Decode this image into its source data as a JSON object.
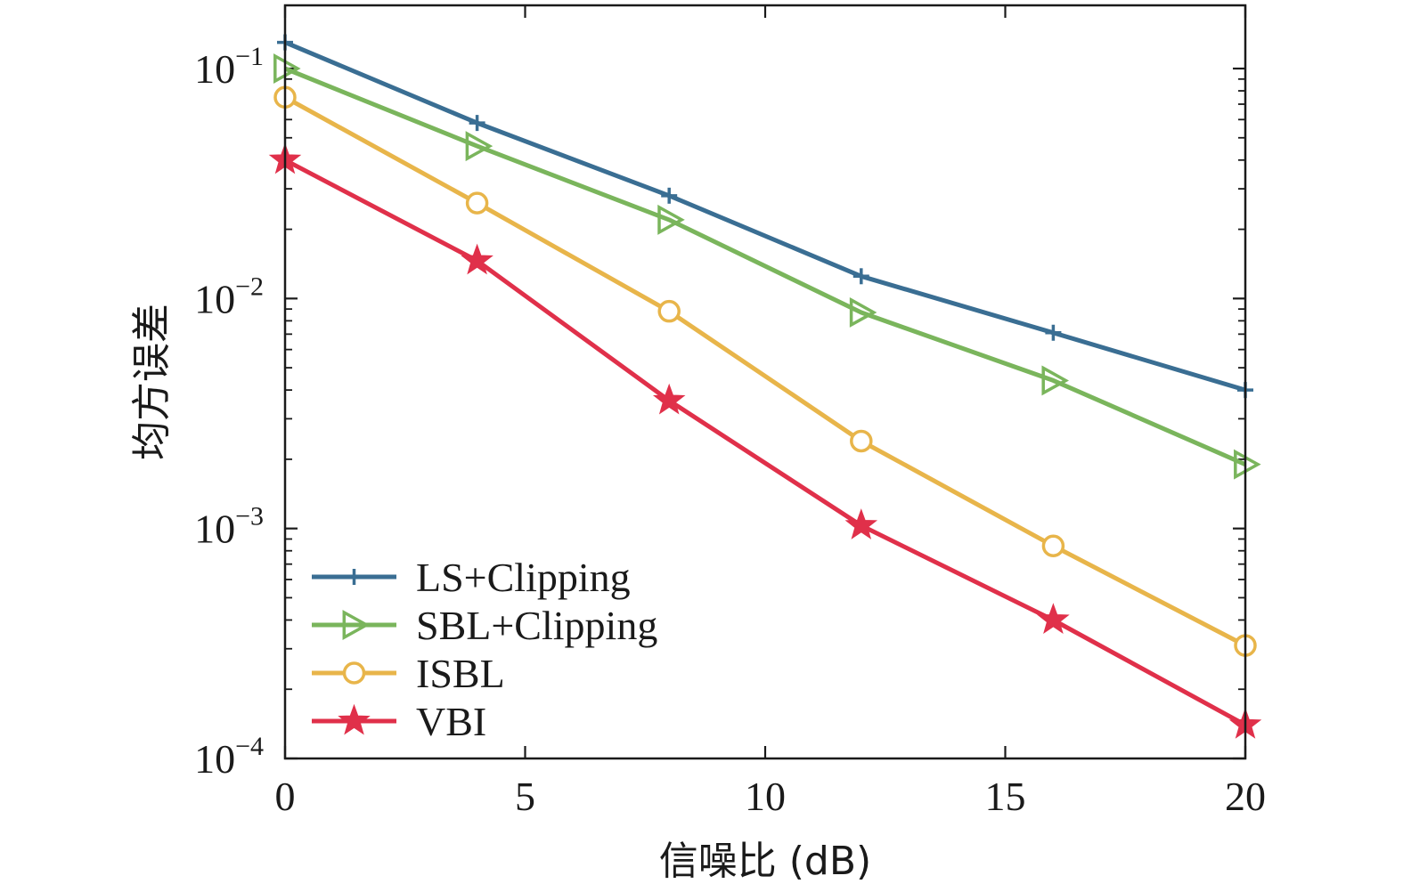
{
  "chart_data": {
    "type": "line",
    "xlabel": "信噪比 (dB)",
    "ylabel": "均方误差",
    "xlim": [
      0,
      20
    ],
    "ylim": [
      0.0001,
      0.2
    ],
    "yscale": "log",
    "x_ticks": [
      0,
      5,
      10,
      15,
      20
    ],
    "y_ticks": [
      {
        "value": 0.1,
        "base": "10",
        "exp": "−1"
      },
      {
        "value": 0.01,
        "base": "10",
        "exp": "−2"
      },
      {
        "value": 0.001,
        "base": "10",
        "exp": "−3"
      },
      {
        "value": 0.0001,
        "base": "10",
        "exp": "−4"
      }
    ],
    "legend_position": "lower-left",
    "x": [
      0,
      4,
      8,
      12,
      16,
      20
    ],
    "series": [
      {
        "name": "LS+Clipping",
        "color": "#3a6e93",
        "marker": "plus",
        "values": [
          0.13,
          0.058,
          0.028,
          0.0125,
          0.0071,
          0.004
        ]
      },
      {
        "name": "SBL+Clipping",
        "color": "#7ab55c",
        "marker": "triangle-right",
        "values": [
          0.1,
          0.046,
          0.022,
          0.0087,
          0.0044,
          0.0019
        ]
      },
      {
        "name": "ISBL",
        "color": "#e8b54a",
        "marker": "circle",
        "values": [
          0.075,
          0.026,
          0.0088,
          0.0024,
          0.00084,
          0.00031
        ]
      },
      {
        "name": "VBI",
        "color": "#e0304a",
        "marker": "star",
        "values": [
          0.04,
          0.0146,
          0.0036,
          0.00103,
          0.0004,
          0.00014
        ]
      }
    ]
  }
}
